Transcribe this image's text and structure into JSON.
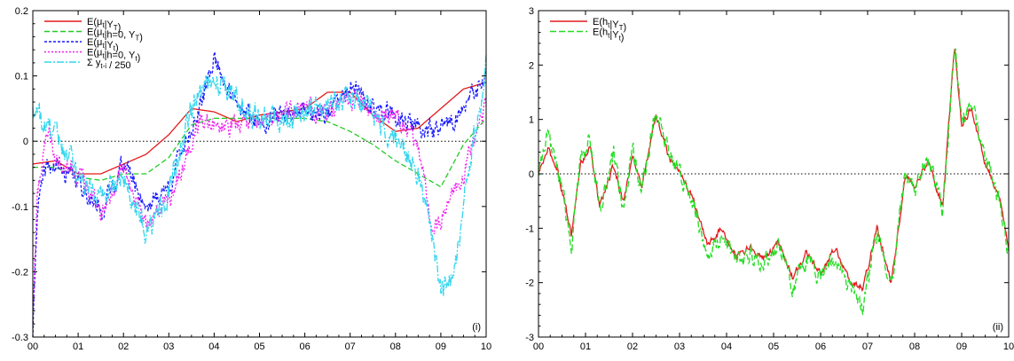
{
  "chart_data": [
    {
      "type": "line",
      "panel_label": "(i)",
      "x_tick_labels": [
        "00",
        "01",
        "02",
        "03",
        "04",
        "05",
        "06",
        "07",
        "08",
        "09",
        "10"
      ],
      "x_ticks": [
        2000,
        2001,
        2002,
        2003,
        2004,
        2005,
        2006,
        2007,
        2008,
        2009,
        2010
      ],
      "xlim": [
        2000,
        2010
      ],
      "y_ticks": [
        -0.3,
        -0.2,
        -0.1,
        0,
        0.1,
        0.2
      ],
      "y_tick_labels": [
        "-0.3",
        "-0.2",
        "-0.1",
        "0",
        "0.1",
        "0.2"
      ],
      "ylim": [
        -0.3,
        0.2
      ],
      "zero_line": true,
      "legend_position": "top-left",
      "series": [
        {
          "name": "E(μt|YT)",
          "legend_main": "E(μ",
          "legend_sub": "t",
          "legend_mid": "|Y",
          "legend_sub2": "T",
          "legend_end": ")",
          "color": "#e41a1c",
          "dash": "",
          "noise": 0,
          "x": [
            2000,
            2000.5,
            2001,
            2001.5,
            2002,
            2002.5,
            2003,
            2003.5,
            2004,
            2004.5,
            2005,
            2005.5,
            2006,
            2006.5,
            2007,
            2007.5,
            2008,
            2008.5,
            2009,
            2009.5,
            2010
          ],
          "values": [
            -0.035,
            -0.03,
            -0.05,
            -0.05,
            -0.035,
            -0.02,
            0.01,
            0.05,
            0.045,
            0.03,
            0.04,
            0.045,
            0.05,
            0.075,
            0.075,
            0.04,
            0.015,
            0.02,
            0.05,
            0.08,
            0.09
          ]
        },
        {
          "name": "E(μt|h=0, YT)",
          "legend_main": "E(μ",
          "legend_sub": "t",
          "legend_mid": "|h=0, Y",
          "legend_sub2": "T",
          "legend_end": ")",
          "color": "#22cc22",
          "dash": "6 3",
          "noise": 0,
          "x": [
            2000,
            2000.5,
            2001,
            2001.5,
            2002,
            2002.5,
            2003,
            2003.5,
            2004,
            2004.5,
            2005,
            2005.5,
            2006,
            2006.5,
            2007,
            2007.5,
            2008,
            2008.5,
            2009,
            2009.5,
            2010
          ],
          "values": [
            -0.04,
            -0.04,
            -0.055,
            -0.06,
            -0.05,
            -0.05,
            -0.025,
            0.025,
            0.035,
            0.035,
            0.035,
            0.035,
            0.035,
            0.03,
            0.015,
            -0.005,
            -0.03,
            -0.05,
            -0.07,
            -0.005,
            0.035
          ]
        },
        {
          "name": "E(μt|Yt)",
          "legend_main": "E(μ",
          "legend_sub": "t",
          "legend_mid": "|Y",
          "legend_sub2": "t",
          "legend_end": ")",
          "color": "#1a1aff",
          "dash": "3 2",
          "noise": 0.012,
          "x": [
            2000,
            2000.1,
            2000.3,
            2000.5,
            2001,
            2001.5,
            2002,
            2002.5,
            2003,
            2003.3,
            2003.7,
            2004,
            2004.5,
            2005,
            2005.5,
            2006,
            2006.5,
            2007,
            2007.5,
            2008,
            2008.5,
            2009,
            2009.5,
            2010
          ],
          "values": [
            -0.3,
            -0.1,
            -0.04,
            -0.04,
            -0.06,
            -0.11,
            -0.03,
            -0.1,
            -0.07,
            -0.01,
            0.05,
            0.13,
            0.05,
            0.03,
            0.04,
            0.05,
            0.04,
            0.085,
            0.05,
            0.04,
            0.02,
            0.015,
            0.05,
            0.095
          ]
        },
        {
          "name": "E(μt|h=0, Yt)",
          "legend_main": "E(μ",
          "legend_sub": "t",
          "legend_mid": "|h=0, Y",
          "legend_sub2": "t",
          "legend_end": ")",
          "color": "#ee22ee",
          "dash": "2 2",
          "noise": 0.012,
          "x": [
            2000,
            2000.1,
            2000.3,
            2000.5,
            2001,
            2001.5,
            2002,
            2002.5,
            2003,
            2003.3,
            2003.7,
            2004,
            2004.5,
            2005,
            2005.5,
            2006,
            2006.5,
            2007,
            2007.5,
            2008,
            2008.5,
            2008.8,
            2009,
            2009.5,
            2010
          ],
          "values": [
            -0.27,
            -0.08,
            0.02,
            -0.02,
            -0.05,
            -0.11,
            -0.04,
            -0.13,
            -0.09,
            -0.04,
            0.04,
            0.02,
            0.02,
            0.03,
            0.04,
            0.05,
            0.04,
            0.07,
            0.04,
            0.04,
            -0.01,
            -0.13,
            -0.12,
            -0.05,
            0.05
          ]
        },
        {
          "name": "Σ yt-i / 250",
          "legend_main": "Σ y",
          "legend_sub": "t-i",
          "legend_mid": " / 250",
          "legend_sub2": "",
          "legend_end": "",
          "color": "#33d6ee",
          "dash": "8 2 2 2",
          "noise": 0.016,
          "x": [
            2000,
            2000.2,
            2000.5,
            2001,
            2001.5,
            2002,
            2002.5,
            2003,
            2003.3,
            2003.7,
            2004,
            2004.5,
            2005,
            2005.5,
            2006,
            2006.5,
            2007,
            2007.5,
            2008,
            2008.5,
            2008.8,
            2009,
            2009.3,
            2009.6,
            2010
          ],
          "values": [
            0.06,
            0.03,
            0.01,
            -0.05,
            -0.08,
            -0.05,
            -0.14,
            -0.08,
            0.0,
            0.08,
            0.1,
            0.06,
            0.04,
            0.03,
            0.04,
            0.05,
            0.07,
            0.04,
            0.0,
            -0.05,
            -0.14,
            -0.23,
            -0.2,
            -0.05,
            0.11
          ]
        }
      ]
    },
    {
      "type": "line",
      "panel_label": "(ii)",
      "x_tick_labels": [
        "00",
        "01",
        "02",
        "03",
        "04",
        "05",
        "06",
        "07",
        "08",
        "09",
        "10"
      ],
      "x_ticks": [
        2000,
        2001,
        2002,
        2003,
        2004,
        2005,
        2006,
        2007,
        2008,
        2009,
        2010
      ],
      "xlim": [
        2000,
        2010
      ],
      "y_ticks": [
        -3,
        -2,
        -1,
        0,
        1,
        2,
        3
      ],
      "y_tick_labels": [
        "-3",
        "-2",
        "-1",
        "0",
        "1",
        "2",
        "3"
      ],
      "ylim": [
        -3,
        3
      ],
      "zero_line": true,
      "legend_position": "top-left",
      "series": [
        {
          "name": "E(ht|YT)",
          "legend_main": "E(h",
          "legend_sub": "t",
          "legend_mid": "|Y",
          "legend_sub2": "T",
          "legend_end": ")",
          "color": "#e41a1c",
          "dash": "",
          "noise": 0.05,
          "x": [
            2000,
            2000.2,
            2000.4,
            2000.7,
            2000.9,
            2001.1,
            2001.3,
            2001.6,
            2001.8,
            2002.0,
            2002.2,
            2002.5,
            2002.8,
            2003.0,
            2003.3,
            2003.6,
            2003.9,
            2004.2,
            2004.5,
            2004.8,
            2005.1,
            2005.4,
            2005.7,
            2006.0,
            2006.3,
            2006.6,
            2006.9,
            2007.2,
            2007.5,
            2007.8,
            2008.0,
            2008.3,
            2008.6,
            2008.85,
            2009.0,
            2009.2,
            2009.5,
            2009.8,
            2010
          ],
          "values": [
            0.0,
            0.45,
            0.1,
            -1.1,
            0.2,
            0.5,
            -0.6,
            0.15,
            -0.5,
            0.3,
            -0.2,
            1.05,
            0.25,
            0.05,
            -0.5,
            -1.3,
            -1.0,
            -1.5,
            -1.35,
            -1.55,
            -1.25,
            -1.9,
            -1.45,
            -1.85,
            -1.35,
            -1.95,
            -2.1,
            -1.0,
            -2.0,
            -0.05,
            -0.2,
            0.2,
            -0.6,
            2.35,
            0.9,
            1.2,
            0.2,
            -0.4,
            -1.4
          ]
        },
        {
          "name": "E(ht|Yt)",
          "legend_main": "E(h",
          "legend_sub": "t",
          "legend_mid": "|Y",
          "legend_sub2": "t",
          "legend_end": ")",
          "color": "#22dd22",
          "dash": "7 3",
          "noise": 0.14,
          "x": [
            2000,
            2000.2,
            2000.4,
            2000.7,
            2000.9,
            2001.1,
            2001.3,
            2001.6,
            2001.8,
            2002.0,
            2002.2,
            2002.5,
            2002.8,
            2003.0,
            2003.3,
            2003.6,
            2003.9,
            2004.2,
            2004.5,
            2004.8,
            2005.1,
            2005.4,
            2005.7,
            2006.0,
            2006.3,
            2006.6,
            2006.9,
            2007.2,
            2007.5,
            2007.8,
            2008.0,
            2008.3,
            2008.6,
            2008.85,
            2009.0,
            2009.2,
            2009.5,
            2009.8,
            2010
          ],
          "values": [
            0.0,
            0.65,
            0.15,
            -1.3,
            0.25,
            0.7,
            -0.7,
            0.3,
            -0.65,
            0.45,
            -0.3,
            1.2,
            0.3,
            0.0,
            -0.55,
            -1.45,
            -1.15,
            -1.6,
            -1.45,
            -1.65,
            -1.3,
            -2.05,
            -1.6,
            -1.95,
            -1.5,
            -2.1,
            -2.45,
            -1.1,
            -2.1,
            0.05,
            -0.25,
            0.3,
            -0.75,
            2.5,
            0.95,
            1.35,
            0.25,
            -0.45,
            -1.45
          ]
        }
      ]
    }
  ]
}
